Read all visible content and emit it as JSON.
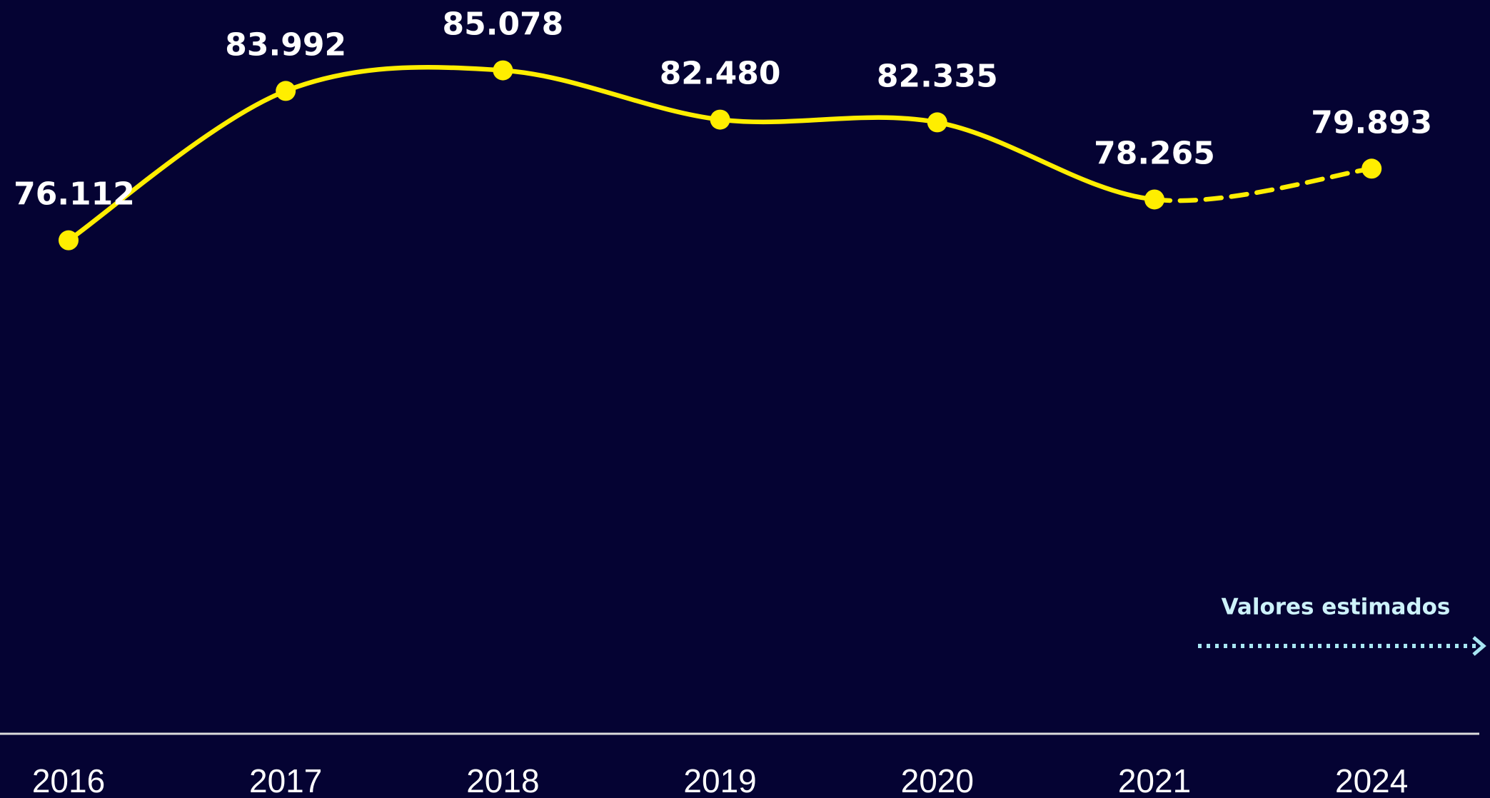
{
  "chart_data": {
    "type": "line",
    "categories": [
      "2016",
      "2017",
      "2018",
      "2019",
      "2020",
      "2021",
      "2024"
    ],
    "values": [
      76112,
      83992,
      85078,
      82480,
      82335,
      78265,
      79893
    ],
    "value_labels": [
      "76.112",
      "83.992",
      "85.078",
      "82.480",
      "82.335",
      "78.265",
      "79.893"
    ],
    "estimated": [
      false,
      false,
      false,
      false,
      false,
      false,
      true
    ],
    "color": "#ffee00",
    "ylim": [
      50000,
      88000
    ],
    "annotation": "Valores estimados"
  }
}
